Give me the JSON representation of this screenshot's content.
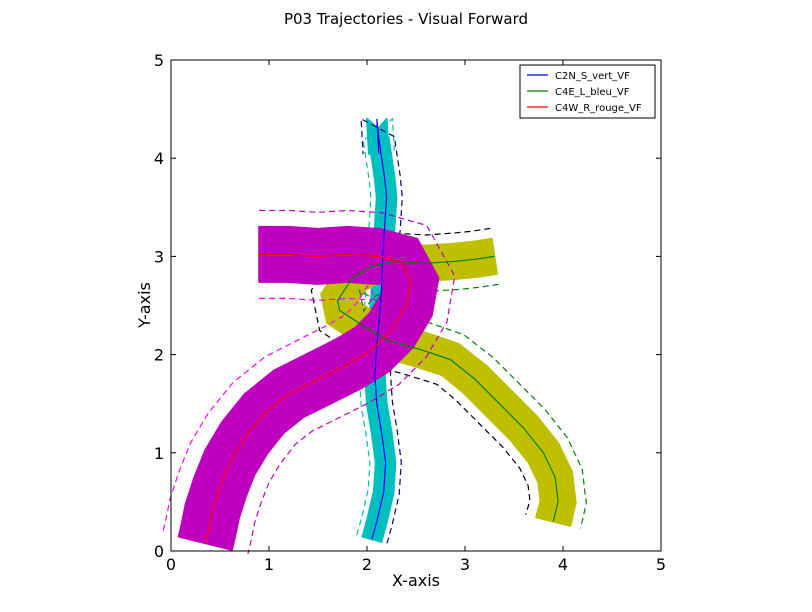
{
  "chart_data": {
    "type": "line",
    "title": "P03 Trajectories - Visual Forward",
    "xlabel": "X-axis",
    "ylabel": "Y-axis",
    "xlim": [
      0,
      5
    ],
    "ylim": [
      0,
      5
    ],
    "xticks": [
      "0",
      "1",
      "2",
      "3",
      "4",
      "5"
    ],
    "yticks": [
      "0",
      "1",
      "2",
      "3",
      "4",
      "5"
    ],
    "legend_position": "top-right",
    "series": [
      {
        "name": "C2N_S_vert_VF",
        "color": "#0000ff",
        "band_color": "#00bfbf",
        "dash_colors": [
          "#00bfbf",
          "#000080"
        ],
        "band_width": 0.1,
        "x": [
          2.05,
          2.1,
          2.17,
          2.19,
          2.15,
          2.1,
          2.08,
          2.1,
          2.13,
          2.15,
          2.16,
          2.18,
          2.2,
          2.18,
          2.15,
          2.12,
          2.1,
          2.12
        ],
        "y": [
          0.12,
          0.3,
          0.6,
          0.9,
          1.2,
          1.5,
          1.8,
          2.1,
          2.4,
          2.7,
          3.0,
          3.3,
          3.6,
          3.8,
          4.0,
          4.2,
          4.4,
          4.05
        ]
      },
      {
        "name": "C4E_L_bleu_VF",
        "color": "#008000",
        "band_color": "#bfbf00",
        "dash_colors": [
          "#008000",
          "#000000"
        ],
        "band_width": 0.18,
        "x": [
          3.3,
          3.1,
          2.9,
          2.6,
          2.3,
          2.05,
          1.85,
          1.7,
          1.72,
          1.95,
          2.2,
          2.55,
          2.85,
          3.1,
          3.35,
          3.6,
          3.8,
          3.92,
          3.95,
          3.9
        ],
        "y": [
          3.0,
          2.97,
          2.95,
          2.93,
          2.95,
          2.9,
          2.78,
          2.55,
          2.45,
          2.3,
          2.15,
          2.05,
          1.95,
          1.75,
          1.5,
          1.25,
          1.0,
          0.75,
          0.5,
          0.3
        ]
      },
      {
        "name": "C4W_R_rouge_VF",
        "color": "#ff0000",
        "band_color": "#bf00bf",
        "dash_colors": [
          "#bf00bf",
          "#ff00ff"
        ],
        "band_width": 0.28,
        "x": [
          0.9,
          1.2,
          1.5,
          1.8,
          2.1,
          2.35,
          2.45,
          2.4,
          2.25,
          2.05,
          1.8,
          1.5,
          1.2,
          0.95,
          0.75,
          0.6,
          0.5,
          0.42,
          0.38,
          0.35
        ],
        "y": [
          3.02,
          3.02,
          3.0,
          3.02,
          3.0,
          2.95,
          2.75,
          2.5,
          2.25,
          2.05,
          1.9,
          1.75,
          1.6,
          1.4,
          1.15,
          0.9,
          0.65,
          0.4,
          0.2,
          0.08
        ]
      }
    ]
  }
}
